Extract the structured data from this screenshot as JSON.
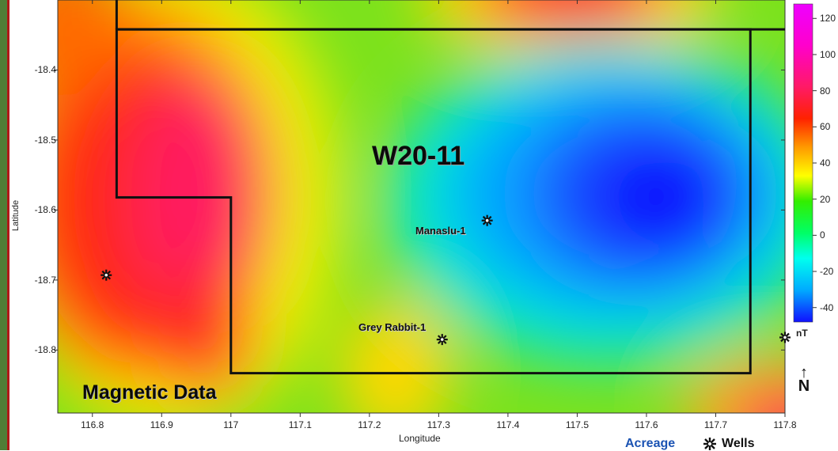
{
  "map": {
    "block_name": "W20-11",
    "data_label": "Magnetic Data",
    "x_axis_label": "Longitude",
    "y_axis_label": "Latitude",
    "x_ticks": [
      "116.8",
      "116.9",
      "117",
      "117.1",
      "117.2",
      "117.3",
      "117.4",
      "117.5",
      "117.6",
      "117.7",
      "117.8"
    ],
    "y_ticks": [
      "-18.4",
      "-18.5",
      "-18.6",
      "-18.7",
      "-18.8"
    ],
    "x_range": [
      116.75,
      117.8
    ],
    "y_range": [
      -18.3,
      -18.89
    ],
    "wells": [
      {
        "name": "Manaslu-1",
        "lon": 117.37,
        "lat": -18.615
      },
      {
        "name": "Grey Rabbit-1",
        "lon": 117.305,
        "lat": -18.785
      },
      {
        "name": "",
        "lon": 116.82,
        "lat": -18.693
      },
      {
        "name": "",
        "lon": 117.8,
        "lat": -18.782
      }
    ],
    "acreage_boundary": [
      [
        116.835,
        -18.342
      ],
      [
        117.8,
        -18.342
      ]
    ],
    "acreage_polygon": [
      [
        116.835,
        -18.342
      ],
      [
        117.75,
        -18.342
      ],
      [
        117.75,
        -18.833
      ],
      [
        117.0,
        -18.833
      ],
      [
        117.0,
        -18.582
      ],
      [
        116.835,
        -18.582
      ]
    ],
    "acreage_left_edge_top": -18.3
  },
  "colorbar": {
    "unit": "nT",
    "ticks": [
      "120",
      "100",
      "80",
      "60",
      "40",
      "20",
      "0",
      "-20",
      "-40"
    ],
    "range": [
      -48,
      128
    ],
    "colors": [
      "#1010ff",
      "#00aaff",
      "#00ffee",
      "#00ff66",
      "#33ee00",
      "#ffff00",
      "#ff9900",
      "#ff2200",
      "#ff1a66",
      "#ff00cc",
      "#ee00ff"
    ]
  },
  "legend": {
    "acreage_label": "Acreage",
    "wells_label": "Wells",
    "acreage_color": "#1b53b3",
    "wells_color": "#111111"
  }
}
